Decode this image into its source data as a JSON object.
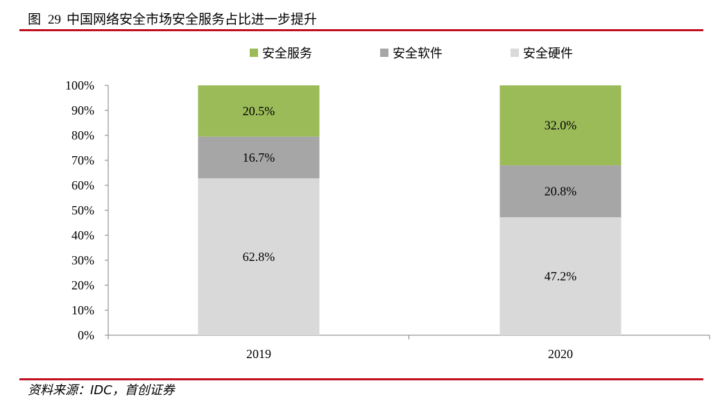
{
  "figure": {
    "label": "图",
    "number": "29",
    "title": "中国网络安全市场安全服务占比进一步提升"
  },
  "source": "资料来源：IDC，首创证券",
  "colors": {
    "rule": "#c0101f",
    "axis": "#7f7f7f"
  },
  "chart_data": {
    "type": "bar",
    "stacked": true,
    "categories": [
      "2019",
      "2020"
    ],
    "series": [
      {
        "name": "安全硬件",
        "values": [
          62.8,
          47.2
        ],
        "labels": [
          "62.8%",
          "47.2%"
        ],
        "color": "#d9d9d9"
      },
      {
        "name": "安全软件",
        "values": [
          16.7,
          20.8
        ],
        "labels": [
          "16.7%",
          "20.8%"
        ],
        "color": "#a6a6a6"
      },
      {
        "name": "安全服务",
        "values": [
          20.5,
          32.0
        ],
        "labels": [
          "20.5%",
          "32.0%"
        ],
        "color": "#9bbb59"
      }
    ],
    "legend_order": [
      "安全服务",
      "安全软件",
      "安全硬件"
    ],
    "ylim": [
      0,
      100
    ],
    "yticks": [
      0,
      10,
      20,
      30,
      40,
      50,
      60,
      70,
      80,
      90,
      100
    ],
    "ytick_labels": [
      "0%",
      "10%",
      "20%",
      "30%",
      "40%",
      "50%",
      "60%",
      "70%",
      "80%",
      "90%",
      "100%"
    ],
    "legend_position": "top",
    "grid": false
  }
}
